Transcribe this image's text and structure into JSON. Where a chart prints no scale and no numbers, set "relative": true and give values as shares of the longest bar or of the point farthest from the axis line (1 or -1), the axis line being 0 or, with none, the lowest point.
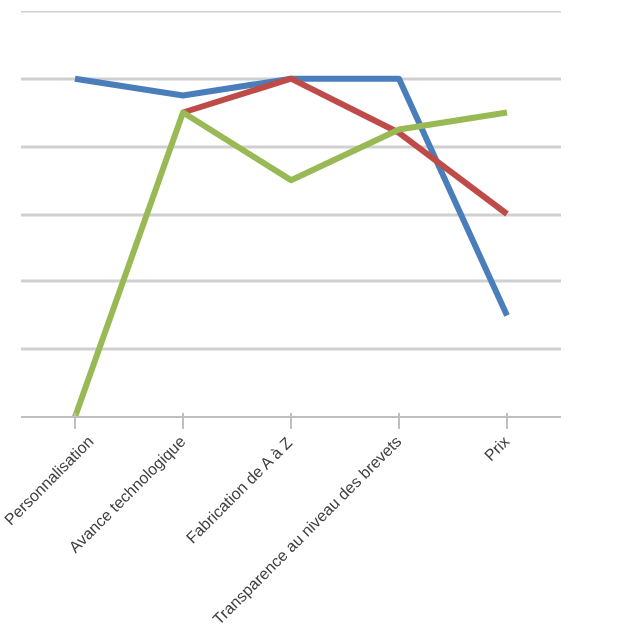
{
  "chart_data": {
    "type": "line",
    "relative": true,
    "grid": "y",
    "categories": [
      "Personnalisation",
      "Avance technologique",
      "Fabrication de A à Z",
      "Transparence au niveau des brevets",
      "Prix"
    ],
    "series": [
      {
        "color": "#4a7ebb",
        "values": [
          1,
          0.95,
          1,
          1,
          0.3
        ]
      },
      {
        "color": "#be4b48",
        "values": [
          null,
          0.9,
          1,
          0.84,
          0.6
        ]
      },
      {
        "color": "#98b954",
        "values": [
          0,
          0.9,
          0.7,
          0.85,
          0.9
        ]
      }
    ]
  }
}
